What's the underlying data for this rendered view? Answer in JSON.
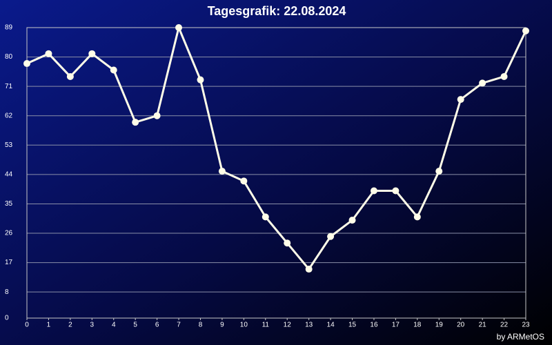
{
  "chart_data": {
    "type": "line",
    "title": "Tagesgrafik: 22.08.2024",
    "footer": "by ARMetOS",
    "x": [
      0,
      1,
      2,
      3,
      4,
      5,
      6,
      7,
      8,
      9,
      10,
      11,
      12,
      13,
      14,
      15,
      16,
      17,
      18,
      19,
      20,
      21,
      22,
      23
    ],
    "values": [
      78,
      81,
      74,
      81,
      76,
      60,
      62,
      89,
      73,
      45,
      42,
      31,
      23,
      15,
      25,
      30,
      39,
      39,
      31,
      45,
      67,
      72,
      74,
      88
    ],
    "color": "#fffde8",
    "xlim": [
      0,
      23
    ],
    "xticks": [
      0,
      1,
      2,
      3,
      4,
      5,
      6,
      7,
      8,
      9,
      10,
      11,
      12,
      13,
      14,
      15,
      16,
      17,
      18,
      19,
      20,
      21,
      22,
      23
    ],
    "ylim": [
      0,
      89
    ],
    "yticks": [
      0,
      8,
      17,
      26,
      35,
      44,
      53,
      62,
      71,
      80,
      89
    ],
    "grid": true
  }
}
